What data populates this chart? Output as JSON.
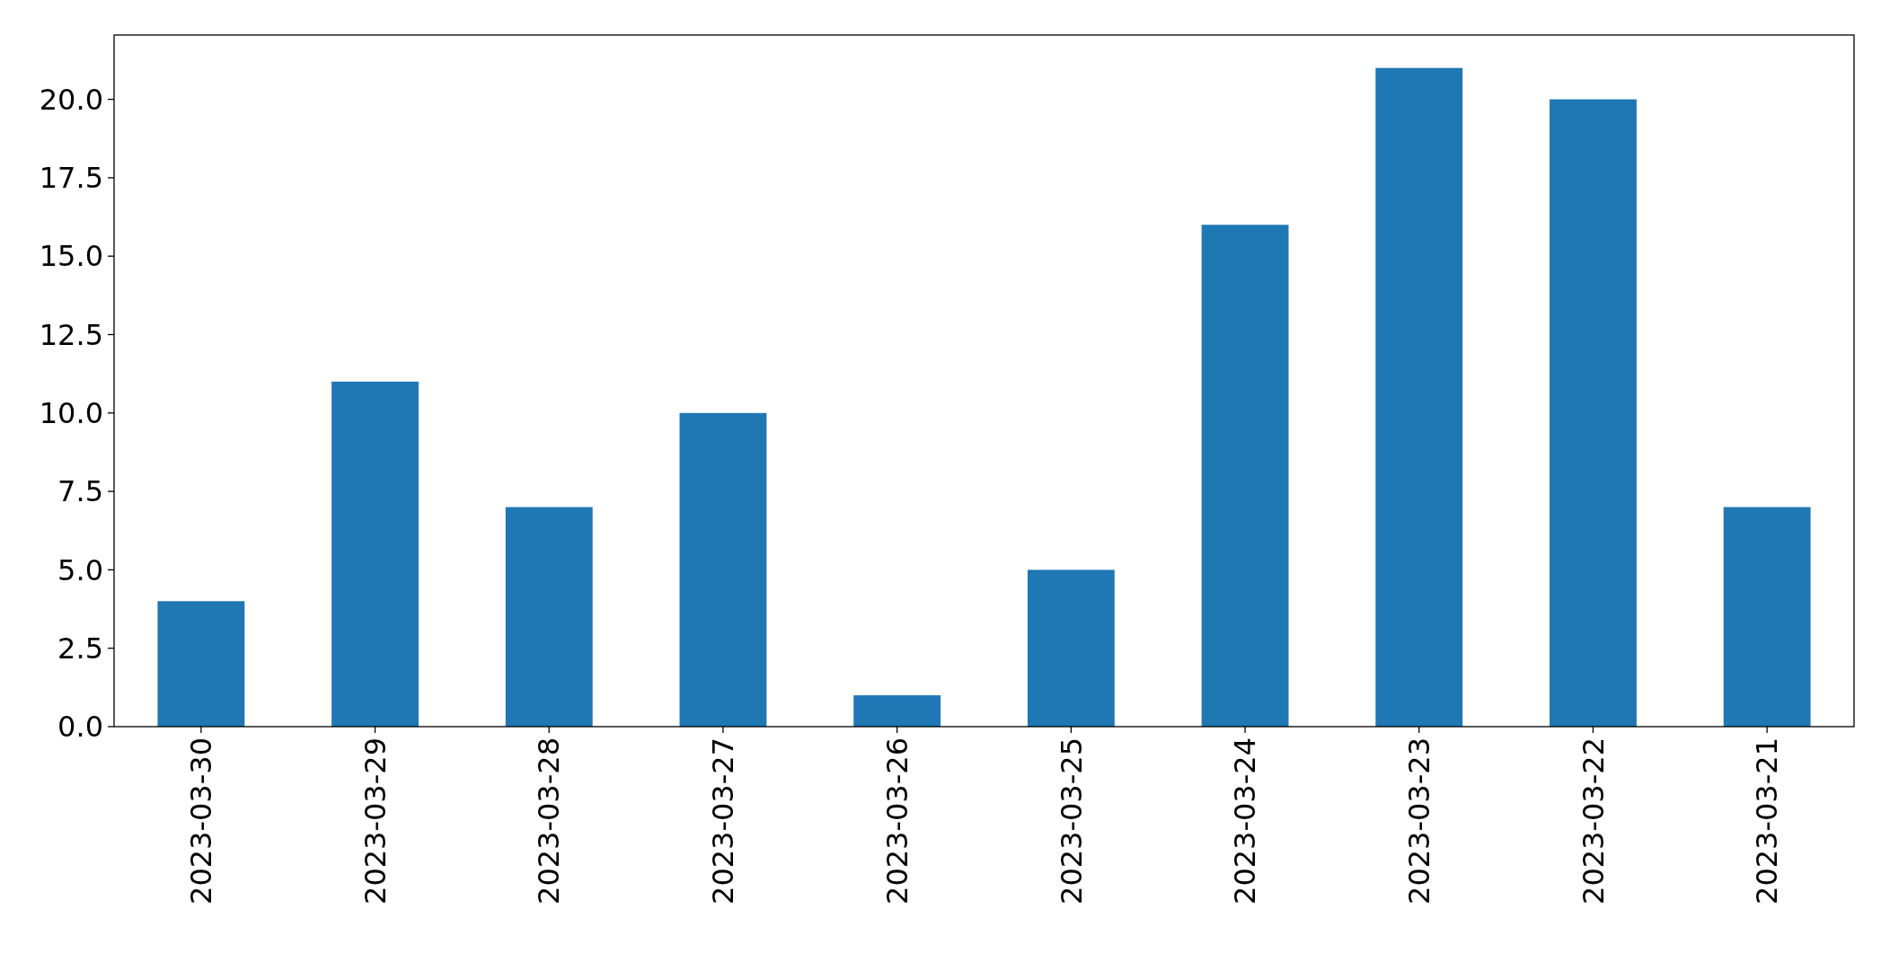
{
  "chart_data": {
    "type": "bar",
    "categories": [
      "2023-03-30",
      "2023-03-29",
      "2023-03-28",
      "2023-03-27",
      "2023-03-26",
      "2023-03-25",
      "2023-03-24",
      "2023-03-23",
      "2023-03-22",
      "2023-03-21"
    ],
    "values": [
      4,
      11,
      7,
      10,
      1,
      5,
      16,
      21,
      20,
      7
    ],
    "color": "#1f77b4",
    "ylim": [
      0,
      22.05
    ],
    "yticks": [
      {
        "value": 0,
        "label": "0.0"
      },
      {
        "value": 2.5,
        "label": "2.5"
      },
      {
        "value": 5,
        "label": "5.0"
      },
      {
        "value": 7.5,
        "label": "7.5"
      },
      {
        "value": 10,
        "label": "10.0"
      },
      {
        "value": 12.5,
        "label": "12.5"
      },
      {
        "value": 15,
        "label": "15.0"
      },
      {
        "value": 17.5,
        "label": "17.5"
      },
      {
        "value": 20,
        "label": "20.0"
      }
    ],
    "grid": false
  }
}
